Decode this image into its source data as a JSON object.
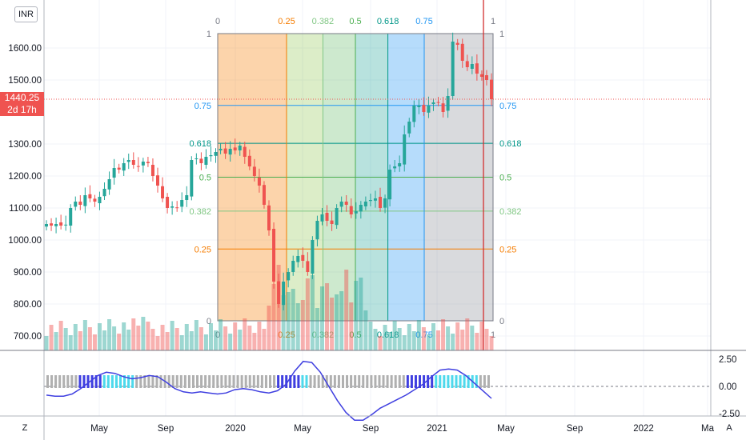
{
  "currency_badge": "INR",
  "last_price": {
    "value": "1440.25",
    "countdown": "2d 17h"
  },
  "corner": {
    "left": "Z",
    "right": "A"
  },
  "chart_data": {
    "type": "candlestick",
    "price_axis": {
      "ticks": [
        "1600.00",
        "1500.00",
        "1300.00",
        "1200.00",
        "1100.00",
        "1000.00",
        "900.00",
        "800.00",
        "700.00"
      ],
      "tick_values": [
        1600,
        1500,
        1300,
        1200,
        1100,
        1000,
        900,
        800,
        700
      ]
    },
    "oscillator_axis": {
      "ticks": [
        "2.50",
        "0.00",
        "-2.50"
      ],
      "tick_values": [
        2.5,
        0,
        -2.5
      ]
    },
    "time_axis": [
      "May",
      "Sep",
      "2020",
      "May",
      "Sep",
      "2021",
      "May",
      "Sep",
      "2022",
      "Ma"
    ],
    "last_price": 1440.25,
    "closes": [
      1050,
      1045,
      1050,
      1045,
      1048,
      1100,
      1120,
      1110,
      1140,
      1130,
      1120,
      1135,
      1160,
      1190,
      1225,
      1220,
      1240,
      1250,
      1235,
      1230,
      1245,
      1240,
      1200,
      1170,
      1130,
      1100,
      1105,
      1100,
      1125,
      1140,
      1250,
      1255,
      1240,
      1260,
      1265,
      1275,
      1285,
      1270,
      1285,
      1280,
      1295,
      1260,
      1230,
      1200,
      1170,
      1110,
      1030,
      870,
      800,
      870,
      900,
      935,
      950,
      935,
      900,
      1000,
      1060,
      1080,
      1060,
      1050,
      1100,
      1120,
      1110,
      1080,
      1090,
      1110,
      1120,
      1125,
      1130,
      1100,
      1130,
      1220,
      1230,
      1240,
      1330,
      1370,
      1420,
      1420,
      1400,
      1420,
      1430,
      1430,
      1400,
      1450,
      1620,
      1610,
      1560,
      1540,
      1550,
      1520,
      1510,
      1500,
      1440
    ],
    "fib_levels": {
      "price_labels": [
        "1",
        "0.75",
        "0.618",
        "0.5",
        "0.382",
        "0.25",
        "0"
      ],
      "time_labels": [
        "0",
        "0.25",
        "0.382",
        "0.5",
        "0.618",
        "0.75",
        "1"
      ]
    },
    "oscillator": [
      -0.8,
      -0.9,
      -0.9,
      -0.7,
      -0.2,
      0.4,
      1,
      1.3,
      1.2,
      0.9,
      0.7,
      0.8,
      1,
      0.9,
      0.4,
      -0.2,
      -0.5,
      -0.6,
      -0.5,
      -0.6,
      -0.7,
      -0.6,
      -0.3,
      -0.2,
      -0.3,
      -0.5,
      -0.6,
      -0.4,
      0.2,
      1.4,
      2.3,
      2.2,
      1.3,
      0,
      -1.3,
      -2.4,
      -3.1,
      -3.1,
      -2.6,
      -2,
      -1.6,
      -1.2,
      -0.8,
      -0.3,
      0.2,
      0.9,
      1.5,
      1.6,
      1.5,
      1,
      0.3,
      -0.4,
      -1.1
    ]
  }
}
